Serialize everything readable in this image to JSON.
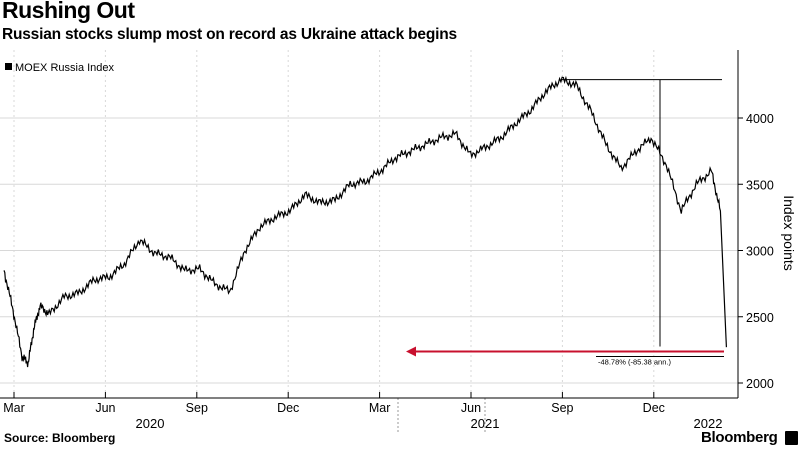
{
  "header": {
    "title": "Rushing Out",
    "subtitle": "Russian stocks slump most on record as Ukraine attack begins"
  },
  "footer": {
    "source": "Source: Bloomberg",
    "brand": "Bloomberg"
  },
  "colors": {
    "line": "#000000",
    "grid": "#d8d8d8",
    "arrow": "#c8102e"
  },
  "chart_data": {
    "type": "line",
    "title": "Rushing Out",
    "subtitle": "Russian stocks slump most on record as Ukraine attack begins",
    "legend": "MOEX Russia Index",
    "legend_position": "top-left",
    "ylabel": "Index points",
    "xlabel": "",
    "ylim": [
      2000,
      4400
    ],
    "yticks": [
      2000,
      2500,
      3000,
      3500,
      4000
    ],
    "month_ticks": [
      "Mar",
      "Jun",
      "Sep",
      "Dec",
      "Mar",
      "Jun",
      "Sep",
      "Dec"
    ],
    "year_ticks": [
      "2020",
      "2021",
      "2022"
    ],
    "grid": true,
    "annotation": {
      "label": "-48.78% (-85.38 ann.)",
      "peak": 4290,
      "trough": 2200
    },
    "series": [
      {
        "name": "MOEX Russia Index",
        "x": [
          0.0,
          0.3,
          0.6,
          0.8,
          1.0,
          1.2,
          1.5,
          2.0,
          2.5,
          3.0,
          3.5,
          4.0,
          4.5,
          5.0,
          5.5,
          6.0,
          6.5,
          7.0,
          7.5,
          8.0,
          8.5,
          9.0,
          9.5,
          10.0,
          10.5,
          11.0,
          11.5,
          12.0,
          12.5,
          13.0,
          13.5,
          14.0,
          14.5,
          15.0,
          15.5,
          16.0,
          16.5,
          17.0,
          17.5,
          18.0,
          18.5,
          19.0,
          19.5,
          20.0,
          20.5,
          21.0,
          21.5,
          22.0,
          22.5,
          23.0,
          23.5,
          23.8,
          24.0
        ],
        "values": [
          2850,
          2550,
          2200,
          2150,
          2420,
          2580,
          2520,
          2650,
          2680,
          2780,
          2800,
          2900,
          3080,
          2980,
          2950,
          2850,
          2860,
          2750,
          2690,
          3000,
          3180,
          3250,
          3300,
          3420,
          3360,
          3380,
          3500,
          3520,
          3600,
          3700,
          3750,
          3800,
          3850,
          3880,
          3720,
          3780,
          3850,
          3960,
          4060,
          4200,
          4290,
          4250,
          4050,
          3800,
          3620,
          3750,
          3850,
          3650,
          3300,
          3500,
          3600,
          3300,
          2270
        ]
      }
    ]
  }
}
